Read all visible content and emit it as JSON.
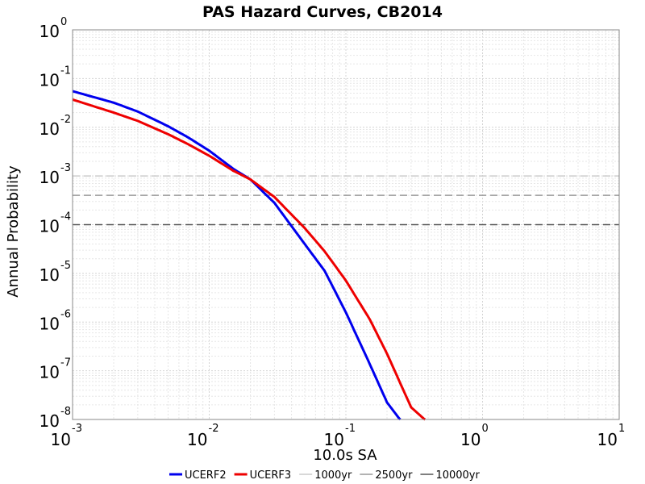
{
  "chart_data": {
    "type": "line",
    "title": "PAS Hazard Curves, CB2014",
    "xlabel": "10.0s SA",
    "ylabel": "Annual Probability",
    "xscale": "log",
    "yscale": "log",
    "xlim": [
      0.001,
      10
    ],
    "ylim": [
      1e-08,
      1
    ],
    "grid": true,
    "legend_position": "bottom",
    "x_tick_labels": [
      {
        "base": "10",
        "exp": "-3"
      },
      {
        "base": "10",
        "exp": "-2"
      },
      {
        "base": "10",
        "exp": "-1"
      },
      {
        "base": "10",
        "exp": "0"
      },
      {
        "base": "10",
        "exp": "1"
      }
    ],
    "y_tick_labels": [
      {
        "base": "10",
        "exp": "0"
      },
      {
        "base": "10",
        "exp": "-1"
      },
      {
        "base": "10",
        "exp": "-2"
      },
      {
        "base": "10",
        "exp": "-3"
      },
      {
        "base": "10",
        "exp": "-4"
      },
      {
        "base": "10",
        "exp": "-5"
      },
      {
        "base": "10",
        "exp": "-6"
      },
      {
        "base": "10",
        "exp": "-7"
      },
      {
        "base": "10",
        "exp": "-8"
      }
    ],
    "series": [
      {
        "name": "UCERF2",
        "color": "#0000ee",
        "x": [
          0.001,
          0.002,
          0.003,
          0.005,
          0.007,
          0.01,
          0.015,
          0.02,
          0.03,
          0.05,
          0.07,
          0.1,
          0.15,
          0.2,
          0.25
        ],
        "y": [
          0.055,
          0.032,
          0.021,
          0.0105,
          0.0062,
          0.0033,
          0.0014,
          0.00085,
          0.00028,
          4e-05,
          1.12e-05,
          1.58e-06,
          1.35e-07,
          2.24e-08,
          9.8e-09
        ]
      },
      {
        "name": "UCERF3",
        "color": "#ee0000",
        "x": [
          0.001,
          0.002,
          0.003,
          0.005,
          0.007,
          0.01,
          0.015,
          0.02,
          0.03,
          0.05,
          0.07,
          0.1,
          0.15,
          0.2,
          0.3,
          0.38
        ],
        "y": [
          0.037,
          0.02,
          0.0135,
          0.0072,
          0.0045,
          0.0026,
          0.00128,
          0.00085,
          0.00037,
          8.5e-05,
          2.82e-05,
          7.1e-06,
          1.12e-06,
          2.24e-07,
          1.78e-08,
          9.8e-09
        ]
      }
    ],
    "reference_lines": [
      {
        "name": "1000yr",
        "y": 0.001,
        "color": "#cccccc"
      },
      {
        "name": "2500yr",
        "y": 0.0004,
        "color": "#999999"
      },
      {
        "name": "10000yr",
        "y": 0.0001,
        "color": "#555555"
      }
    ]
  }
}
